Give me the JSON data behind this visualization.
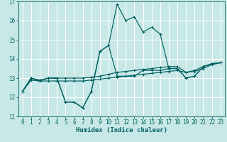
{
  "xlabel": "Humidex (Indice chaleur)",
  "xlim": [
    -0.5,
    23.5
  ],
  "ylim": [
    11,
    17
  ],
  "yticks": [
    11,
    12,
    13,
    14,
    15,
    16,
    17
  ],
  "xticks": [
    0,
    1,
    2,
    3,
    4,
    5,
    6,
    7,
    8,
    9,
    10,
    11,
    12,
    13,
    14,
    15,
    16,
    17,
    18,
    19,
    20,
    21,
    22,
    23
  ],
  "bg_color": "#c8e8e8",
  "line_color": "#006060",
  "grid_color": "#ffffff",
  "series": [
    {
      "x": [
        0,
        1,
        2,
        3,
        4,
        5,
        6,
        7,
        8,
        9,
        10,
        11,
        12,
        13,
        14,
        15,
        16,
        17,
        18,
        19,
        20,
        21,
        22,
        23
      ],
      "y": [
        12.3,
        13.0,
        12.85,
        13.0,
        13.0,
        11.75,
        11.75,
        11.45,
        12.3,
        14.4,
        14.7,
        16.85,
        16.0,
        16.2,
        15.4,
        15.65,
        15.3,
        13.5,
        13.5,
        13.0,
        13.1,
        13.6,
        13.75,
        13.8
      ]
    },
    {
      "x": [
        0,
        1,
        2,
        3,
        4,
        5,
        6,
        7,
        8,
        9,
        10,
        11,
        12,
        13,
        14,
        15,
        16,
        17,
        18,
        19,
        20,
        21,
        22,
        23
      ],
      "y": [
        12.3,
        13.0,
        12.85,
        13.0,
        13.0,
        11.75,
        11.75,
        11.45,
        12.3,
        14.4,
        14.7,
        13.1,
        13.1,
        13.1,
        13.4,
        13.4,
        13.4,
        13.5,
        13.5,
        13.0,
        13.1,
        13.6,
        13.75,
        13.8
      ]
    },
    {
      "x": [
        0,
        1,
        2,
        3,
        4,
        5,
        6,
        7,
        8,
        9,
        10,
        11,
        12,
        13,
        14,
        15,
        16,
        17,
        18,
        19,
        20,
        21,
        22,
        23
      ],
      "y": [
        12.3,
        12.9,
        12.85,
        12.85,
        12.85,
        12.85,
        12.85,
        12.85,
        12.9,
        12.95,
        13.0,
        13.05,
        13.1,
        13.15,
        13.2,
        13.25,
        13.3,
        13.35,
        13.4,
        13.3,
        13.35,
        13.5,
        13.7,
        13.8
      ]
    },
    {
      "x": [
        0,
        1,
        2,
        3,
        4,
        5,
        6,
        7,
        8,
        9,
        10,
        11,
        12,
        13,
        14,
        15,
        16,
        17,
        18,
        19,
        20,
        21,
        22,
        23
      ],
      "y": [
        12.3,
        13.0,
        12.9,
        13.0,
        13.0,
        13.0,
        13.0,
        13.0,
        13.05,
        13.1,
        13.2,
        13.3,
        13.35,
        13.4,
        13.45,
        13.5,
        13.55,
        13.6,
        13.6,
        13.3,
        13.4,
        13.6,
        13.75,
        13.8
      ]
    }
  ],
  "marker_style": "+",
  "marker_size": 3,
  "line_width": 0.85,
  "tick_fontsize": 5.5,
  "label_fontsize": 6.5
}
